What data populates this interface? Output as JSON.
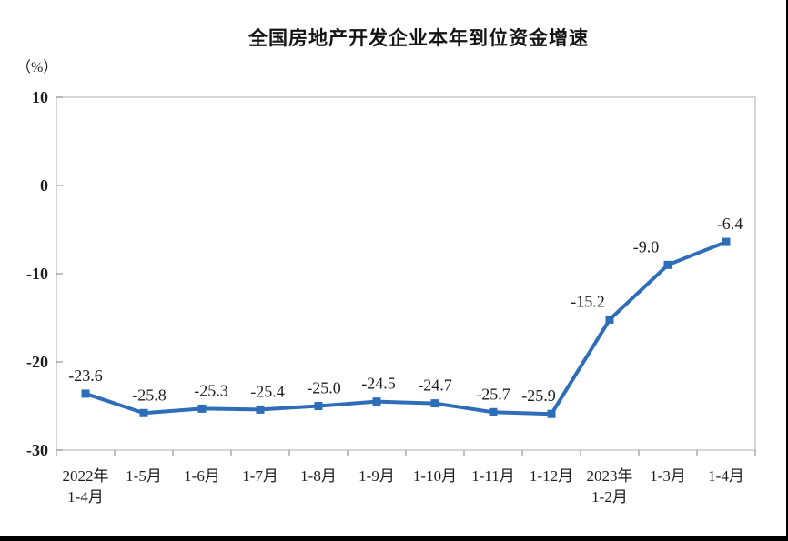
{
  "title": "全国房地产开发企业本年到位资金增速",
  "colors": {
    "line": "#2E6DB8",
    "frame": "#c9c9c9",
    "tick": "#aaaaaa",
    "text": "#1e1e1e",
    "page_border": "#000000"
  },
  "chart_data": {
    "type": "line",
    "title": "全国房地产开发企业本年到位资金增速",
    "ylabel": "（%）",
    "xlabel": "",
    "categories": [
      [
        "2022年",
        "1-4月"
      ],
      [
        "1-5月"
      ],
      [
        "1-6月"
      ],
      [
        "1-7月"
      ],
      [
        "1-8月"
      ],
      [
        "1-9月"
      ],
      [
        "1-10月"
      ],
      [
        "1-11月"
      ],
      [
        "1-12月"
      ],
      [
        "2023年",
        "1-2月"
      ],
      [
        "1-3月"
      ],
      [
        "1-4月"
      ]
    ],
    "values": [
      -23.6,
      -25.8,
      -25.3,
      -25.4,
      -25.0,
      -24.5,
      -24.7,
      -25.7,
      -25.9,
      -15.2,
      -9.0,
      -6.4
    ],
    "data_labels": [
      "-23.6",
      "-25.8",
      "-25.3",
      "-25.4",
      "-25.0",
      "-24.5",
      "-24.7",
      "-25.7",
      "-25.9",
      "-15.2",
      "-9.0",
      "-6.4"
    ],
    "yticks": [
      10,
      0,
      -10,
      -20,
      -30
    ],
    "ylim": [
      -30,
      10
    ],
    "grid": false,
    "legend": "none",
    "marker": "square",
    "series_name": "本年到位资金增速"
  }
}
